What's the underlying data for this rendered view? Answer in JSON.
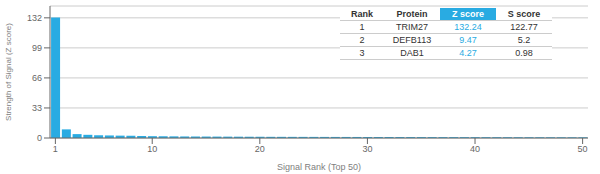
{
  "chart_data": {
    "type": "bar",
    "xlabel": "Signal Rank (Top 50)",
    "ylabel": "Strength of Signal (Z score)",
    "x": [
      1,
      2,
      3,
      4,
      5,
      6,
      7,
      8,
      9,
      10,
      11,
      12,
      13,
      14,
      15,
      16,
      17,
      18,
      19,
      20,
      21,
      22,
      23,
      24,
      25,
      26,
      27,
      28,
      29,
      30,
      31,
      32,
      33,
      34,
      35,
      36,
      37,
      38,
      39,
      40,
      41,
      42,
      43,
      44,
      45,
      46,
      47,
      48,
      49,
      50
    ],
    "values": [
      132.24,
      9.47,
      4.27,
      3.5,
      3.0,
      2.8,
      2.6,
      2.4,
      2.2,
      2.0,
      1.9,
      1.8,
      1.7,
      1.65,
      1.6,
      1.55,
      1.5,
      1.45,
      1.4,
      1.35,
      1.3,
      1.28,
      1.26,
      1.24,
      1.22,
      1.2,
      1.18,
      1.16,
      1.14,
      1.12,
      1.1,
      1.08,
      1.06,
      1.04,
      1.02,
      1.0,
      0.98,
      0.96,
      0.94,
      0.92,
      0.9,
      0.88,
      0.86,
      0.84,
      0.82,
      0.8,
      0.78,
      0.76,
      0.74,
      0.72
    ],
    "color": "#29ABE2",
    "xlim": [
      0.5,
      50.5
    ],
    "xticks": [
      1,
      10,
      20,
      30,
      40,
      50
    ],
    "ylim": [
      0,
      145
    ],
    "yticks": [
      0,
      33,
      66,
      99,
      132
    ],
    "grid": true,
    "table": {
      "headers": [
        "Rank",
        "Protein",
        "Z score",
        "S score"
      ],
      "rows": [
        [
          "1",
          "TRIM27",
          "132.24",
          "122.77"
        ],
        [
          "2",
          "DEFB113",
          "9.47",
          "5.2"
        ],
        [
          "3",
          "DAB1",
          "4.27",
          "0.98"
        ]
      ]
    }
  }
}
